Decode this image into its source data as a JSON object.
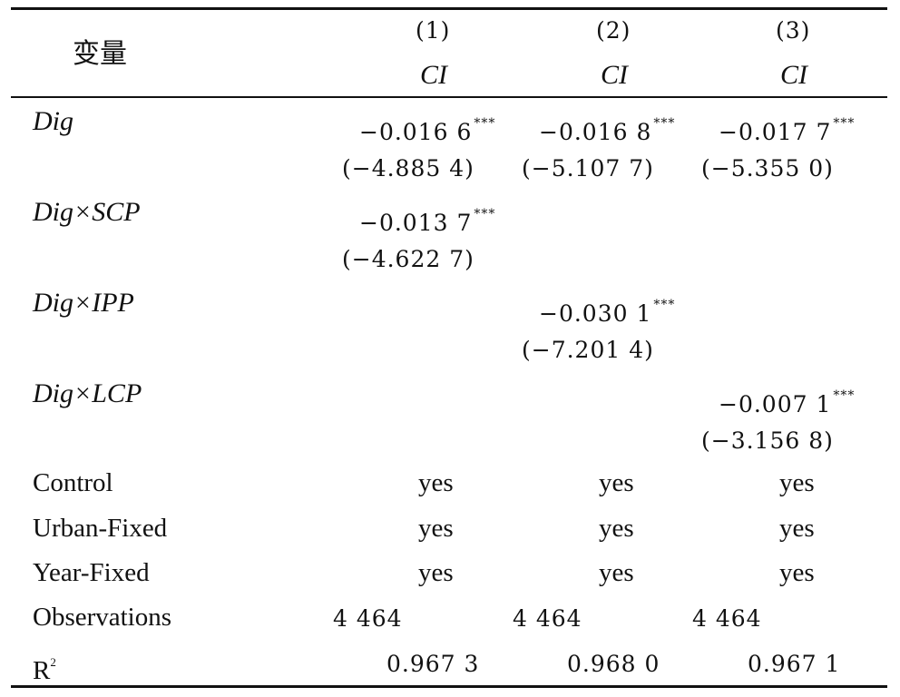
{
  "table": {
    "header": {
      "variable_label": "变量",
      "columns": [
        {
          "number": "(1)",
          "dep_var": "CI"
        },
        {
          "number": "(2)",
          "dep_var": "CI"
        },
        {
          "number": "(3)",
          "dep_var": "CI"
        }
      ]
    },
    "rows": {
      "dig": {
        "label": "Dig",
        "coef": [
          "−0.016 6",
          "−0.016 8",
          "−0.017 7"
        ],
        "stars": [
          "***",
          "***",
          "***"
        ],
        "tstat": [
          "(−4.885 4)",
          "(−5.107 7)",
          "(−5.355 0)"
        ]
      },
      "dig_scp": {
        "label": "Dig×SCP",
        "coef": "−0.013 7",
        "stars": "***",
        "tstat": "(−4.622 7)"
      },
      "dig_ipp": {
        "label": "Dig×IPP",
        "coef": "−0.030 1",
        "stars": "***",
        "tstat": "(−7.201 4)"
      },
      "dig_lcp": {
        "label": "Dig×LCP",
        "coef": "−0.007 1",
        "stars": "***",
        "tstat": "(−3.156 8)"
      },
      "control": {
        "label": "Control",
        "values": [
          "yes",
          "yes",
          "yes"
        ]
      },
      "urban_fixed": {
        "label": "Urban-Fixed",
        "values": [
          "yes",
          "yes",
          "yes"
        ]
      },
      "year_fixed": {
        "label": "Year-Fixed",
        "values": [
          "yes",
          "yes",
          "yes"
        ]
      },
      "observations": {
        "label": "Observations",
        "values": [
          "4 464",
          "4 464",
          "4 464"
        ]
      },
      "r2": {
        "label": "R",
        "label_sup": "2",
        "values": [
          "0.967 3",
          "0.968 0",
          "0.967 1"
        ]
      }
    }
  }
}
